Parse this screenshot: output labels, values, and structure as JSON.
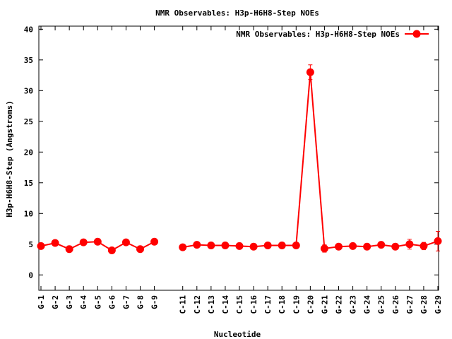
{
  "chart_data": {
    "type": "line",
    "title": "NMR Observables: H3p-H6H8-Step NOEs",
    "xlabel": "Nucleotide",
    "ylabel": "H3p-H6H8-Step (Angstroms)",
    "ylim": [
      -2.5,
      40.5
    ],
    "yticks": [
      0,
      5,
      10,
      15,
      20,
      25,
      30,
      35,
      40
    ],
    "grid": false,
    "legend_position": "top-right",
    "x_positions": [
      1,
      2,
      3,
      4,
      5,
      6,
      7,
      8,
      9,
      11,
      12,
      13,
      14,
      15,
      16,
      17,
      18,
      19,
      20,
      21,
      22,
      23,
      24,
      25,
      26,
      27,
      28,
      29
    ],
    "categories": [
      "G-1",
      "G-2",
      "G-3",
      "G-4",
      "G-5",
      "G-6",
      "G-7",
      "G-8",
      "G-9",
      "C-11",
      "C-12",
      "C-13",
      "C-14",
      "C-15",
      "C-16",
      "C-17",
      "C-18",
      "C-19",
      "C-20",
      "G-21",
      "G-22",
      "G-23",
      "G-24",
      "G-25",
      "G-26",
      "G-27",
      "G-28",
      "G-29"
    ],
    "series": [
      {
        "name": "NMR Observables: H3p-H6H8-Step NOEs",
        "color": "#ff0000",
        "segments": [
          [
            0,
            8
          ],
          [
            9,
            27
          ]
        ],
        "values": [
          4.7,
          5.2,
          4.2,
          5.3,
          5.4,
          4.0,
          5.3,
          4.2,
          5.4,
          4.5,
          4.9,
          4.8,
          4.8,
          4.7,
          4.6,
          4.8,
          4.8,
          4.8,
          33.0,
          4.3,
          4.6,
          4.7,
          4.6,
          4.9,
          4.6,
          5.0,
          4.7,
          5.5
        ],
        "errors": [
          0.3,
          0.2,
          0.5,
          0.2,
          0.2,
          0.3,
          0.2,
          0.2,
          0.2,
          0.2,
          0.2,
          0.2,
          0.2,
          0.2,
          0.2,
          0.2,
          0.2,
          0.2,
          1.2,
          0.6,
          0.2,
          0.2,
          0.2,
          0.2,
          0.2,
          0.8,
          0.6,
          1.6
        ]
      }
    ]
  }
}
